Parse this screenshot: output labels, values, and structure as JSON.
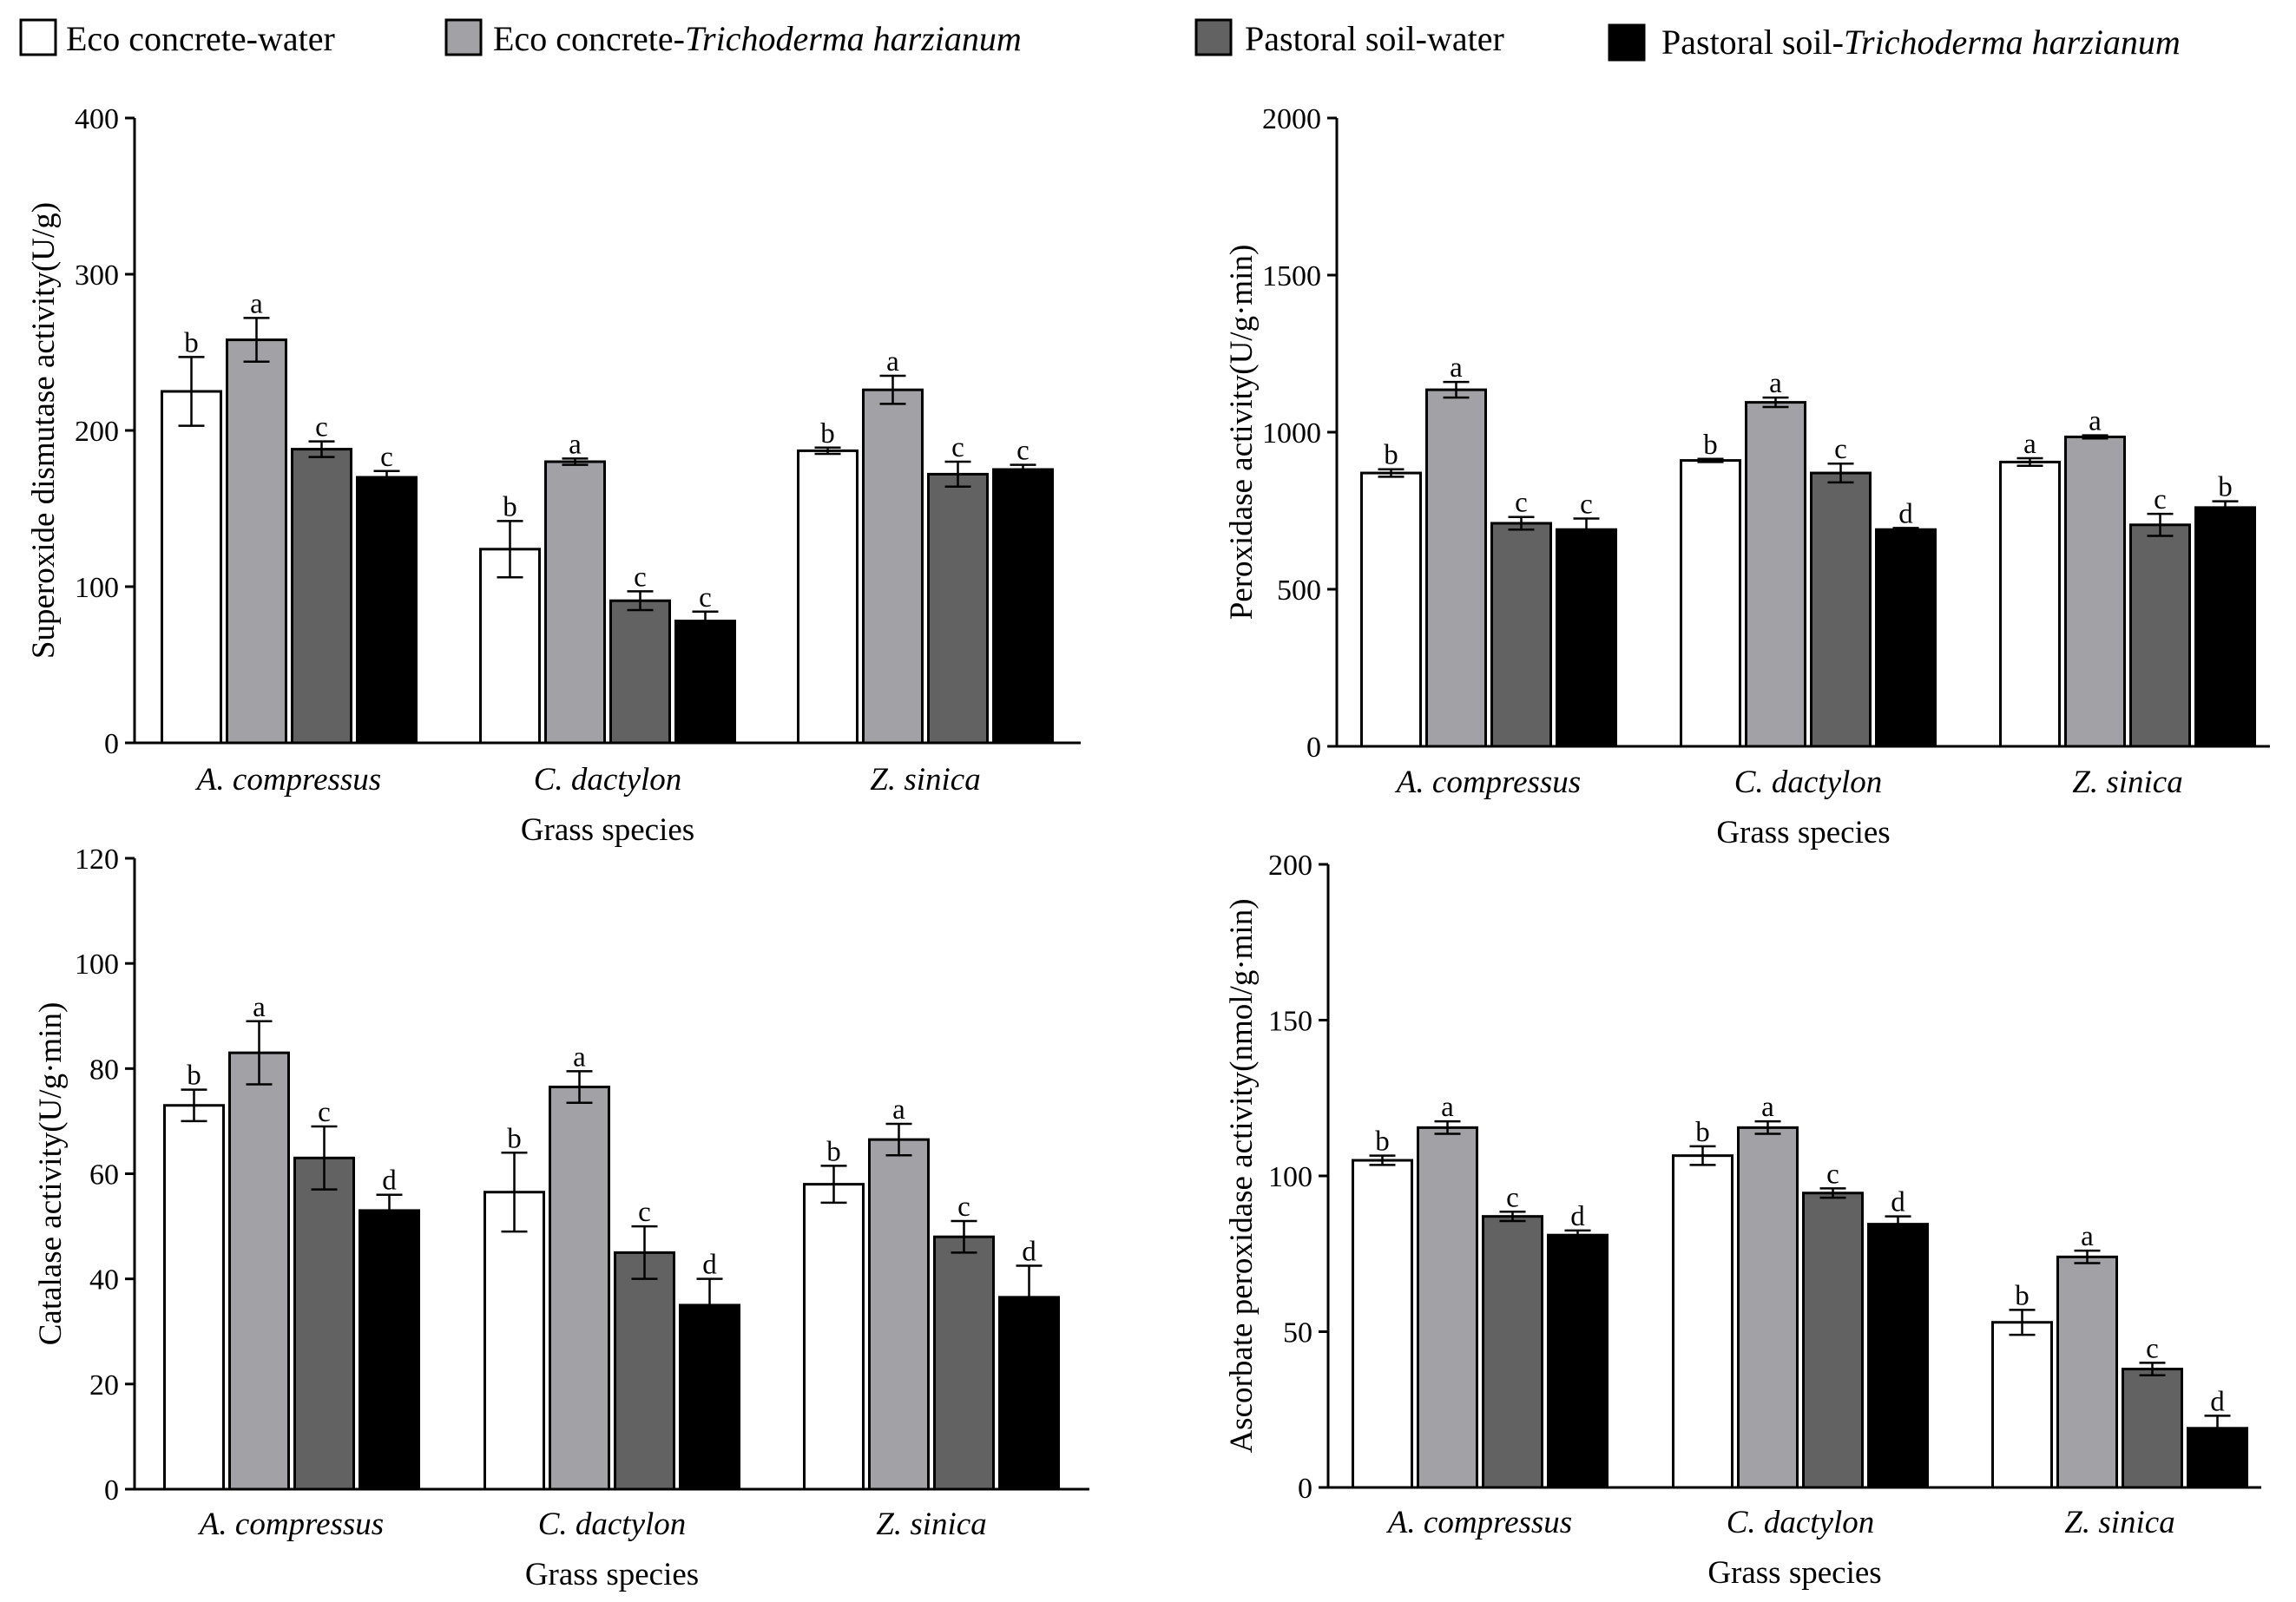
{
  "colors": {
    "series": [
      "#ffffff",
      "#a2a2a6",
      "#626262",
      "#000000"
    ],
    "stroke": "#000000"
  },
  "legend": [
    {
      "prefix": "Eco concrete-water",
      "italic": ""
    },
    {
      "prefix": "Eco concrete-",
      "italic": "Trichoderma harzianum"
    },
    {
      "prefix": "Pastoral soil-water",
      "italic": ""
    },
    {
      "prefix": "Pastoral soil-",
      "italic": "Trichoderma harzianum"
    }
  ],
  "chart_data": [
    {
      "type": "bar",
      "panel": "top-left",
      "xlabel": "Grass species",
      "ylabel": "Superoxide dismutase activity(U/g)",
      "ylim": [
        0,
        400
      ],
      "yticks": [
        0,
        100,
        200,
        300,
        400
      ],
      "categories": [
        "A. compressus",
        "C. dactylon",
        "Z. sinica"
      ],
      "series": [
        {
          "name": "Eco concrete-water",
          "values": [
            225,
            124,
            187
          ],
          "errors": [
            22,
            18,
            2
          ],
          "letters": [
            "b",
            "b",
            "b"
          ]
        },
        {
          "name": "Eco concrete-Trichoderma harzianum",
          "values": [
            258,
            180,
            226
          ],
          "errors": [
            14,
            2,
            9
          ],
          "letters": [
            "a",
            "a",
            "a"
          ]
        },
        {
          "name": "Pastoral soil-water",
          "values": [
            188,
            91,
            172
          ],
          "errors": [
            5,
            6,
            8
          ],
          "letters": [
            "c",
            "c",
            "c"
          ]
        },
        {
          "name": "Pastoral soil-Trichoderma harzianum",
          "values": [
            170,
            78,
            175
          ],
          "errors": [
            4,
            6,
            3
          ],
          "letters": [
            "c",
            "c",
            "c"
          ]
        }
      ]
    },
    {
      "type": "bar",
      "panel": "top-right",
      "xlabel": "Grass species",
      "ylabel": "Peroxidase activity(U/g·min)",
      "ylim": [
        0,
        2000
      ],
      "yticks": [
        0,
        500,
        1000,
        1500,
        2000
      ],
      "categories": [
        "A. compressus",
        "C. dactylon",
        "Z. sinica"
      ],
      "series": [
        {
          "name": "Eco concrete-water",
          "values": [
            870,
            910,
            905
          ],
          "errors": [
            12,
            5,
            12
          ],
          "letters": [
            "b",
            "b",
            "a"
          ]
        },
        {
          "name": "Eco concrete-Trichoderma harzianum",
          "values": [
            1135,
            1095,
            985
          ],
          "errors": [
            25,
            15,
            5
          ],
          "letters": [
            "a",
            "a",
            "a"
          ]
        },
        {
          "name": "Pastoral soil-water",
          "values": [
            710,
            870,
            705
          ],
          "errors": [
            20,
            30,
            35
          ],
          "letters": [
            "c",
            "c",
            "c"
          ]
        },
        {
          "name": "Pastoral soil-Trichoderma harzianum",
          "values": [
            690,
            690,
            760
          ],
          "errors": [
            35,
            5,
            20
          ],
          "letters": [
            "c",
            "d",
            "b"
          ]
        }
      ]
    },
    {
      "type": "bar",
      "panel": "bottom-left",
      "xlabel": "Grass species",
      "ylabel": "Catalase activity(U/g·min)",
      "ylim": [
        0,
        120
      ],
      "yticks": [
        0,
        20,
        40,
        60,
        80,
        100,
        120
      ],
      "categories": [
        "A. compressus",
        "C. dactylon",
        "Z. sinica"
      ],
      "series": [
        {
          "name": "Eco concrete-water",
          "values": [
            73,
            56.5,
            58
          ],
          "errors": [
            3,
            7.5,
            3.5
          ],
          "letters": [
            "b",
            "b",
            "b"
          ]
        },
        {
          "name": "Eco concrete-Trichoderma harzianum",
          "values": [
            83,
            76.5,
            66.5
          ],
          "errors": [
            6,
            3,
            3
          ],
          "letters": [
            "a",
            "a",
            "a"
          ]
        },
        {
          "name": "Pastoral soil-water",
          "values": [
            63,
            45,
            48
          ],
          "errors": [
            6,
            5,
            3
          ],
          "letters": [
            "c",
            "c",
            "c"
          ]
        },
        {
          "name": "Pastoral soil-Trichoderma harzianum",
          "values": [
            53,
            35,
            36.5
          ],
          "errors": [
            3,
            5,
            6
          ],
          "letters": [
            "d",
            "d",
            "d"
          ]
        }
      ]
    },
    {
      "type": "bar",
      "panel": "bottom-right",
      "xlabel": "Grass species",
      "ylabel": "Ascorbate peroxidase activity(nmol/g·min)",
      "ylim": [
        0,
        200
      ],
      "yticks": [
        0,
        50,
        100,
        150,
        200
      ],
      "categories": [
        "A. compressus",
        "C. dactylon",
        "Z. sinica"
      ],
      "series": [
        {
          "name": "Eco concrete-water",
          "values": [
            105,
            106.5,
            53
          ],
          "errors": [
            1.5,
            3,
            4
          ],
          "letters": [
            "b",
            "b",
            "b"
          ]
        },
        {
          "name": "Eco concrete-Trichoderma harzianum",
          "values": [
            115.5,
            115.5,
            74
          ],
          "errors": [
            2,
            2,
            2
          ],
          "letters": [
            "a",
            "a",
            "a"
          ]
        },
        {
          "name": "Pastoral soil-water",
          "values": [
            87,
            94.5,
            38
          ],
          "errors": [
            1.5,
            1.5,
            2
          ],
          "letters": [
            "c",
            "c",
            "c"
          ]
        },
        {
          "name": "Pastoral soil-Trichoderma harzianum",
          "values": [
            81,
            84.5,
            19
          ],
          "errors": [
            1.5,
            2.5,
            4
          ],
          "letters": [
            "d",
            "d",
            "d"
          ]
        }
      ]
    }
  ]
}
